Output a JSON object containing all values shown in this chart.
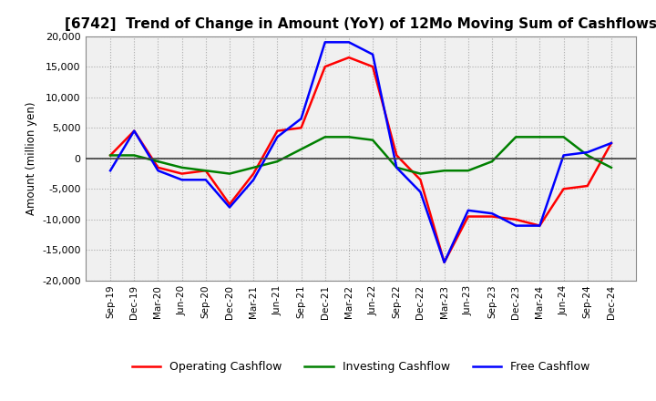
{
  "title": "[6742]  Trend of Change in Amount (YoY) of 12Mo Moving Sum of Cashflows",
  "ylabel": "Amount (million yen)",
  "ylim": [
    -20000,
    20000
  ],
  "yticks": [
    -20000,
    -15000,
    -10000,
    -5000,
    0,
    5000,
    10000,
    15000,
    20000
  ],
  "x_labels": [
    "Sep-19",
    "Dec-19",
    "Mar-20",
    "Jun-20",
    "Sep-20",
    "Dec-20",
    "Mar-21",
    "Jun-21",
    "Sep-21",
    "Dec-21",
    "Mar-22",
    "Jun-22",
    "Sep-22",
    "Dec-22",
    "Mar-23",
    "Jun-23",
    "Sep-23",
    "Dec-23",
    "Mar-24",
    "Jun-24",
    "Sep-24",
    "Dec-24"
  ],
  "operating": [
    500,
    4500,
    -1500,
    -2500,
    -2000,
    -7500,
    -2500,
    4500,
    5000,
    15000,
    16500,
    15000,
    500,
    -3500,
    -17000,
    -9500,
    -9500,
    -10000,
    -11000,
    -5000,
    -4500,
    2500
  ],
  "investing": [
    500,
    500,
    -500,
    -1500,
    -2000,
    -2500,
    -1500,
    -500,
    1500,
    3500,
    3500,
    3000,
    -1500,
    -2500,
    -2000,
    -2000,
    -500,
    3500,
    3500,
    3500,
    500,
    -1500
  ],
  "free": [
    -2000,
    4500,
    -2000,
    -3500,
    -3500,
    -8000,
    -3500,
    3500,
    6500,
    19000,
    19000,
    17000,
    -1500,
    -5500,
    -17000,
    -8500,
    -9000,
    -11000,
    -11000,
    500,
    1000,
    2500
  ],
  "operating_color": "#ff0000",
  "investing_color": "#008000",
  "free_color": "#0000ff",
  "background_color": "#ffffff",
  "plot_bg_color": "#f0f0f0",
  "grid_color": "#aaaaaa",
  "zero_line_color": "#404040",
  "title_fontsize": 11,
  "legend_labels": [
    "Operating Cashflow",
    "Investing Cashflow",
    "Free Cashflow"
  ]
}
